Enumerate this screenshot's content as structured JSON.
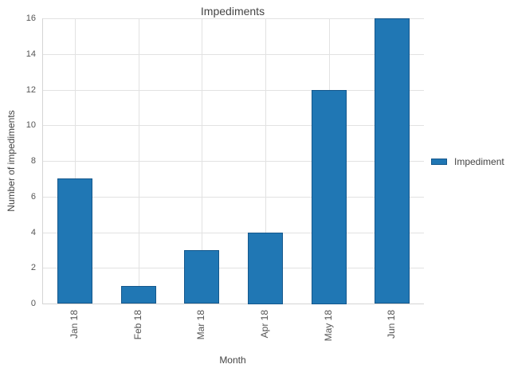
{
  "chart_data": {
    "type": "bar",
    "title": "Impediments",
    "xlabel": "Month",
    "ylabel": "Number of impediments",
    "categories": [
      "Jan 18",
      "Feb 18",
      "Mar 18",
      "Apr 18",
      "May 18",
      "Jun 18"
    ],
    "series": [
      {
        "name": "Impediment",
        "values": [
          7,
          1,
          3,
          4,
          12,
          16
        ]
      }
    ],
    "ylim": [
      0,
      16
    ],
    "yticks": [
      0,
      2,
      4,
      6,
      8,
      10,
      12,
      14,
      16
    ],
    "grid": true,
    "legend_position": "right-middle",
    "colors": {
      "bar_fill": "#2077b4",
      "bar_border": "#14578c",
      "grid_line": "#e2e2e2",
      "axis_line": "#d4d4d4",
      "title_text": "#444444",
      "tick_text": "#555555",
      "background": "#ffffff"
    }
  }
}
